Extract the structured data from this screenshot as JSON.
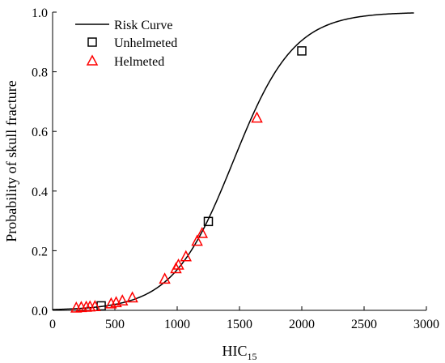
{
  "chart_data": {
    "type": "scatter",
    "title": "",
    "xlabel": "HIC",
    "xlabel_sub": "15",
    "ylabel": "Probability of skull fracture",
    "xlim": [
      0,
      3000
    ],
    "ylim": [
      0,
      1.0
    ],
    "xticks": [
      0,
      500,
      1000,
      1500,
      2000,
      2500,
      3000
    ],
    "yticks": [
      0.0,
      0.2,
      0.4,
      0.6,
      0.8,
      1.0
    ],
    "xtick_labels": [
      "0",
      "500",
      "1000",
      "1500",
      "2000",
      "2500",
      "3000"
    ],
    "ytick_labels": [
      "0.0",
      "0.2",
      "0.4",
      "0.6",
      "0.8",
      "1.0"
    ],
    "grid": false,
    "legend_position": "top-left",
    "curve": {
      "name": "Risk Curve",
      "color": "#000000",
      "model": "logistic",
      "midpoint": 1450,
      "slope": 0.0041,
      "x_range": [
        0,
        2900
      ]
    },
    "series": [
      {
        "name": "Unhelmeted",
        "marker": "square",
        "color": "#000000",
        "points": [
          {
            "x": 390,
            "y": 0.015
          },
          {
            "x": 1250,
            "y": 0.298
          },
          {
            "x": 2000,
            "y": 0.87
          }
        ]
      },
      {
        "name": "Helmeted",
        "marker": "triangle",
        "color": "#ff0000",
        "points": [
          {
            "x": 190,
            "y": 0.008
          },
          {
            "x": 230,
            "y": 0.01
          },
          {
            "x": 270,
            "y": 0.011
          },
          {
            "x": 300,
            "y": 0.012
          },
          {
            "x": 340,
            "y": 0.013
          },
          {
            "x": 470,
            "y": 0.022
          },
          {
            "x": 510,
            "y": 0.026
          },
          {
            "x": 560,
            "y": 0.032
          },
          {
            "x": 640,
            "y": 0.042
          },
          {
            "x": 900,
            "y": 0.105
          },
          {
            "x": 990,
            "y": 0.14
          },
          {
            "x": 1010,
            "y": 0.152
          },
          {
            "x": 1070,
            "y": 0.18
          },
          {
            "x": 1160,
            "y": 0.232
          },
          {
            "x": 1200,
            "y": 0.258
          },
          {
            "x": 1640,
            "y": 0.645
          }
        ]
      }
    ]
  }
}
